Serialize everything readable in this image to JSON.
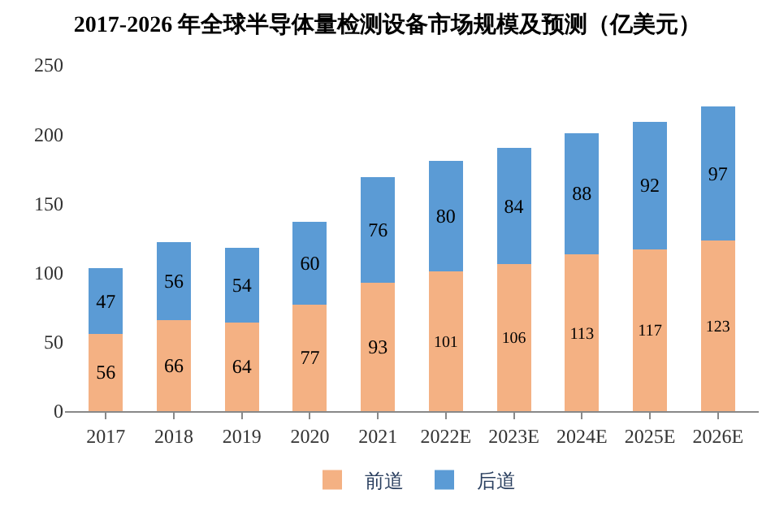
{
  "chart_data": {
    "type": "bar",
    "title": "2017-2026 年全球半导体量检测设备市场规模及预测（亿美元）",
    "categories": [
      "2017",
      "2018",
      "2019",
      "2020",
      "2021",
      "2022E",
      "2023E",
      "2024E",
      "2025E",
      "2026E"
    ],
    "series": [
      {
        "name": "前道",
        "color": "#f4b183",
        "values": [
          56,
          66,
          64,
          77,
          93,
          101,
          106,
          113,
          117,
          123
        ]
      },
      {
        "name": "后道",
        "color": "#5b9bd5",
        "values": [
          47,
          56,
          54,
          60,
          76,
          80,
          84,
          88,
          92,
          97
        ]
      }
    ],
    "stacked": true,
    "data_labels": true,
    "ylim": [
      0,
      250
    ],
    "yticks": [
      0,
      50,
      100,
      150,
      200,
      250
    ],
    "grid": false,
    "legend": "bottom"
  }
}
